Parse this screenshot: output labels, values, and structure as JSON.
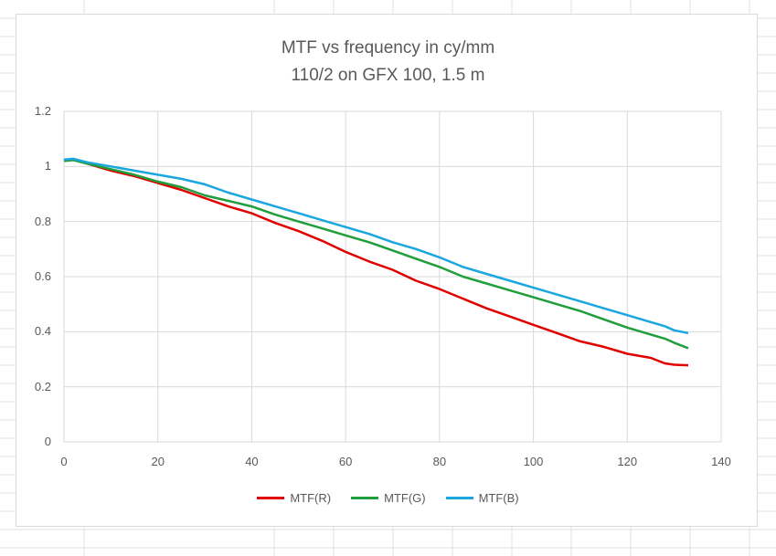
{
  "chart_data": {
    "type": "line",
    "title_lines": [
      "MTF vs frequency in cy/mm",
      "110/2 on GFX 100, 1.5 m"
    ],
    "xlabel": "",
    "ylabel": "",
    "xlim": [
      0,
      140
    ],
    "ylim": [
      0,
      1.2
    ],
    "x_ticks": [
      "0",
      "20",
      "40",
      "60",
      "80",
      "100",
      "120",
      "140"
    ],
    "y_ticks": [
      "0",
      "0.2",
      "0.4",
      "0.6",
      "0.8",
      "1",
      "1.2"
    ],
    "grid": true,
    "legend_position": "bottom",
    "x": [
      0,
      2,
      5,
      10,
      15,
      20,
      25,
      30,
      35,
      40,
      45,
      50,
      55,
      60,
      65,
      70,
      75,
      80,
      85,
      90,
      95,
      100,
      105,
      110,
      115,
      120,
      125,
      128,
      130,
      133
    ],
    "series": [
      {
        "name": "MTF(R)",
        "color": "#e00000",
        "values": [
          1.02,
          1.025,
          1.01,
          0.985,
          0.965,
          0.94,
          0.915,
          0.885,
          0.855,
          0.83,
          0.795,
          0.765,
          0.73,
          0.69,
          0.655,
          0.625,
          0.585,
          0.555,
          0.52,
          0.485,
          0.455,
          0.425,
          0.395,
          0.365,
          0.345,
          0.32,
          0.305,
          0.285,
          0.28,
          0.278
        ]
      },
      {
        "name": "MTF(G)",
        "color": "#1f9e3b",
        "values": [
          1.02,
          1.023,
          1.01,
          0.99,
          0.97,
          0.945,
          0.925,
          0.895,
          0.875,
          0.855,
          0.825,
          0.8,
          0.775,
          0.75,
          0.725,
          0.695,
          0.665,
          0.635,
          0.6,
          0.575,
          0.55,
          0.525,
          0.5,
          0.475,
          0.445,
          0.415,
          0.39,
          0.375,
          0.36,
          0.34
        ]
      },
      {
        "name": "MTF(B)",
        "color": "#1aa7e0",
        "values": [
          1.025,
          1.028,
          1.015,
          1.0,
          0.985,
          0.97,
          0.955,
          0.935,
          0.905,
          0.88,
          0.855,
          0.83,
          0.805,
          0.78,
          0.755,
          0.725,
          0.7,
          0.67,
          0.635,
          0.61,
          0.585,
          0.56,
          0.535,
          0.51,
          0.485,
          0.46,
          0.435,
          0.42,
          0.405,
          0.395
        ]
      }
    ]
  }
}
